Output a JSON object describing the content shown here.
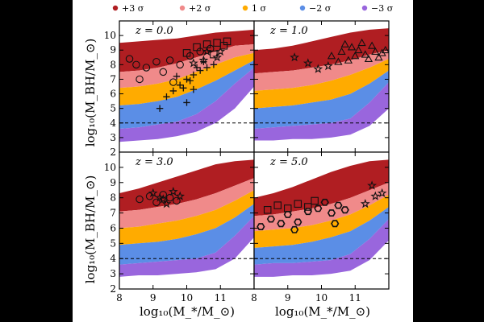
{
  "legend": [
    {
      "label": "+3 σ",
      "color": "#b01e22"
    },
    {
      "label": "+2 σ",
      "color": "#f08a8a"
    },
    {
      "label": "1 σ",
      "color": "#ffab00"
    },
    {
      "label": "−2 σ",
      "color": "#5b8ee6"
    },
    {
      "label": "−3 σ",
      "color": "#9966dd"
    }
  ],
  "axes": {
    "ylabel_top": "log₁₀(M_BH/M_⊙)",
    "ylabel_bottom": "log₁₀(M_BH/M_⊙)",
    "xlabel_left": "log₁₀(M_*/M_⊙)",
    "xlabel_right": "log₁₀(M_*/M_⊙)"
  },
  "chart_data": {
    "type": "scatter",
    "xlim": [
      8,
      12
    ],
    "ylim": [
      2,
      11
    ],
    "x_ticks": [
      8,
      9,
      10,
      11
    ],
    "y_ticks": [
      2,
      3,
      4,
      5,
      6,
      7,
      8,
      9,
      10
    ],
    "threshold_line_y": 4,
    "panels": [
      {
        "label": "z = 0.0",
        "bands": {
          "p3": {
            "lo": [
              7.5,
              7.6,
              7.8,
              8.1,
              8.5,
              8.9,
              9.3,
              9.4
            ],
            "hi": [
              9.5,
              9.6,
              9.7,
              9.8,
              10.0,
              10.2,
              10.3,
              10.4
            ]
          },
          "p2": {
            "lo": [
              6.4,
              6.5,
              6.7,
              7.0,
              7.5,
              8.0,
              8.5,
              8.8
            ],
            "hi": [
              7.5,
              7.6,
              7.8,
              8.1,
              8.5,
              8.9,
              9.3,
              9.4
            ]
          },
          "s1": {
            "lo": [
              5.2,
              5.3,
              5.5,
              5.8,
              6.3,
              6.9,
              7.6,
              8.3
            ],
            "hi": [
              6.4,
              6.5,
              6.7,
              7.0,
              7.5,
              8.0,
              8.5,
              8.8
            ]
          },
          "m2": {
            "lo": [
              3.6,
              3.7,
              3.9,
              4.1,
              4.6,
              5.5,
              6.7,
              7.8
            ],
            "hi": [
              5.2,
              5.3,
              5.5,
              5.8,
              6.3,
              6.9,
              7.6,
              8.3
            ]
          },
          "m3": {
            "lo": [
              2.7,
              2.8,
              2.9,
              3.1,
              3.4,
              4.0,
              5.0,
              6.5
            ],
            "hi": [
              3.6,
              3.7,
              3.9,
              4.1,
              4.6,
              5.5,
              6.7,
              7.8
            ]
          }
        },
        "observations": [
          {
            "marker": "circle",
            "points": [
              [
                8.3,
                8.4
              ],
              [
                8.5,
                8.0
              ],
              [
                8.8,
                7.8
              ],
              [
                9.1,
                8.2
              ],
              [
                9.3,
                7.5
              ],
              [
                9.5,
                8.3
              ],
              [
                9.8,
                8.0
              ],
              [
                10.1,
                8.6
              ],
              [
                10.4,
                8.9
              ],
              [
                10.7,
                9.1
              ],
              [
                9.6,
                6.8
              ],
              [
                8.6,
                7.0
              ]
            ]
          },
          {
            "marker": "square",
            "points": [
              [
                10.0,
                8.8
              ],
              [
                10.3,
                9.2
              ],
              [
                10.6,
                9.4
              ],
              [
                10.9,
                9.5
              ],
              [
                11.1,
                9.3
              ],
              [
                10.8,
                8.7
              ],
              [
                11.2,
                9.6
              ]
            ]
          },
          {
            "marker": "plus",
            "points": [
              [
                9.6,
                6.2
              ],
              [
                9.8,
                6.6
              ],
              [
                10.0,
                7.0
              ],
              [
                10.2,
                7.3
              ],
              [
                10.4,
                7.6
              ],
              [
                10.6,
                7.8
              ],
              [
                10.1,
                6.9
              ],
              [
                9.9,
                6.4
              ],
              [
                10.3,
                7.8
              ],
              [
                10.5,
                8.2
              ],
              [
                9.7,
                7.2
              ],
              [
                10.8,
                8.0
              ],
              [
                9.4,
                5.8
              ],
              [
                10.0,
                5.4
              ],
              [
                9.2,
                5.0
              ],
              [
                10.2,
                6.3
              ]
            ]
          },
          {
            "marker": "star",
            "points": [
              [
                10.2,
                8.1
              ],
              [
                10.5,
                8.3
              ],
              [
                10.9,
                8.5
              ],
              [
                11.0,
                8.9
              ],
              [
                10.6,
                8.9
              ]
            ]
          }
        ]
      },
      {
        "label": "z = 1.0",
        "bands": {
          "p3": {
            "lo": [
              7.4,
              7.5,
              7.6,
              7.8,
              8.0,
              8.3,
              8.7,
              9.0
            ],
            "hi": [
              9.0,
              9.1,
              9.3,
              9.6,
              9.9,
              10.2,
              10.4,
              10.5
            ]
          },
          "p2": {
            "lo": [
              6.2,
              6.3,
              6.4,
              6.6,
              6.9,
              7.3,
              7.8,
              8.4
            ],
            "hi": [
              7.4,
              7.5,
              7.6,
              7.8,
              8.0,
              8.3,
              8.7,
              9.0
            ]
          },
          "s1": {
            "lo": [
              5.0,
              5.1,
              5.2,
              5.4,
              5.6,
              6.0,
              6.7,
              7.6
            ],
            "hi": [
              6.2,
              6.3,
              6.4,
              6.6,
              6.9,
              7.3,
              7.8,
              8.4
            ]
          },
          "m2": {
            "lo": [
              3.6,
              3.7,
              3.8,
              3.9,
              4.0,
              4.3,
              5.4,
              6.8
            ],
            "hi": [
              5.0,
              5.1,
              5.2,
              5.4,
              5.6,
              6.0,
              6.7,
              7.6
            ]
          },
          "m3": {
            "lo": [
              2.8,
              2.8,
              2.9,
              2.9,
              3.0,
              3.2,
              3.8,
              5.0
            ],
            "hi": [
              3.6,
              3.7,
              3.8,
              3.9,
              4.0,
              4.3,
              5.4,
              6.8
            ]
          }
        },
        "observations": [
          {
            "marker": "triangle",
            "points": [
              [
                10.3,
                8.6
              ],
              [
                10.6,
                8.9
              ],
              [
                10.9,
                9.2
              ],
              [
                11.1,
                9.0
              ],
              [
                11.3,
                8.7
              ],
              [
                11.5,
                9.3
              ],
              [
                10.8,
                8.3
              ],
              [
                11.6,
                8.9
              ],
              [
                11.7,
                8.5
              ],
              [
                10.5,
                8.2
              ],
              [
                11.4,
                8.4
              ],
              [
                11.8,
                8.8
              ],
              [
                11.2,
                9.5
              ],
              [
                10.7,
                9.4
              ],
              [
                11.9,
                9.0
              ],
              [
                11.0,
                8.6
              ]
            ]
          },
          {
            "marker": "star",
            "points": [
              [
                9.2,
                8.5
              ],
              [
                9.6,
                8.1
              ],
              [
                9.9,
                7.7
              ],
              [
                10.2,
                7.9
              ]
            ]
          }
        ]
      },
      {
        "label": "z = 3.0",
        "bands": {
          "p3": {
            "lo": [
              7.1,
              7.2,
              7.4,
              7.6,
              7.9,
              8.3,
              8.8,
              9.3
            ],
            "hi": [
              8.3,
              8.6,
              9.0,
              9.4,
              9.8,
              10.2,
              10.4,
              10.5
            ]
          },
          "p2": {
            "lo": [
              6.0,
              6.1,
              6.3,
              6.5,
              6.8,
              7.2,
              7.8,
              8.5
            ],
            "hi": [
              7.1,
              7.2,
              7.4,
              7.6,
              7.9,
              8.3,
              8.8,
              9.3
            ]
          },
          "s1": {
            "lo": [
              4.9,
              5.0,
              5.1,
              5.3,
              5.6,
              6.0,
              6.7,
              7.6
            ],
            "hi": [
              6.0,
              6.1,
              6.3,
              6.5,
              6.8,
              7.2,
              7.8,
              8.5
            ]
          },
          "m2": {
            "lo": [
              3.6,
              3.7,
              3.8,
              3.9,
              4.0,
              4.4,
              5.5,
              6.8
            ],
            "hi": [
              4.9,
              5.0,
              5.1,
              5.3,
              5.6,
              6.0,
              6.7,
              7.6
            ]
          },
          "m3": {
            "lo": [
              2.8,
              2.9,
              2.9,
              3.0,
              3.1,
              3.3,
              4.0,
              5.4
            ],
            "hi": [
              3.6,
              3.7,
              3.8,
              3.9,
              4.0,
              4.4,
              5.5,
              6.8
            ]
          }
        },
        "observations": [
          {
            "marker": "circle",
            "points": [
              [
                8.6,
                7.9
              ],
              [
                8.9,
                8.1
              ],
              [
                9.1,
                7.7
              ],
              [
                9.3,
                8.2
              ],
              [
                9.5,
                8.0
              ],
              [
                9.7,
                7.8
              ]
            ]
          },
          {
            "marker": "star",
            "points": [
              [
                9.0,
                8.3
              ],
              [
                9.2,
                8.0
              ],
              [
                9.4,
                7.6
              ],
              [
                9.6,
                8.4
              ],
              [
                9.8,
                8.1
              ],
              [
                9.3,
                7.9
              ]
            ]
          }
        ]
      },
      {
        "label": "z = 5.0",
        "bands": {
          "p3": {
            "lo": [
              6.8,
              6.9,
              7.1,
              7.3,
              7.6,
              8.0,
              8.5,
              9.0
            ],
            "hi": [
              8.0,
              8.3,
              8.7,
              9.2,
              9.7,
              10.1,
              10.4,
              10.5
            ]
          },
          "p2": {
            "lo": [
              5.8,
              5.9,
              6.0,
              6.2,
              6.5,
              6.9,
              7.5,
              8.2
            ],
            "hi": [
              6.8,
              6.9,
              7.1,
              7.3,
              7.6,
              8.0,
              8.5,
              9.0
            ]
          },
          "s1": {
            "lo": [
              4.7,
              4.8,
              4.9,
              5.1,
              5.4,
              5.8,
              6.5,
              7.4
            ],
            "hi": [
              5.8,
              5.9,
              6.0,
              6.2,
              6.5,
              6.9,
              7.5,
              8.2
            ]
          },
          "m2": {
            "lo": [
              3.6,
              3.7,
              3.7,
              3.8,
              3.9,
              4.3,
              5.3,
              6.6
            ],
            "hi": [
              4.7,
              4.8,
              4.9,
              5.1,
              5.4,
              5.8,
              6.5,
              7.4
            ]
          },
          "m3": {
            "lo": [
              2.8,
              2.8,
              2.9,
              2.9,
              3.0,
              3.2,
              3.9,
              5.2
            ],
            "hi": [
              3.6,
              3.7,
              3.7,
              3.8,
              3.9,
              4.3,
              5.3,
              6.6
            ]
          }
        },
        "observations": [
          {
            "marker": "hexagon",
            "points": [
              [
                8.2,
                6.1
              ],
              [
                8.5,
                6.6
              ],
              [
                8.8,
                6.3
              ],
              [
                9.0,
                6.9
              ],
              [
                9.3,
                6.4
              ],
              [
                9.6,
                7.1
              ],
              [
                9.9,
                7.3
              ],
              [
                10.1,
                7.7
              ],
              [
                10.3,
                7.0
              ],
              [
                10.5,
                7.5
              ],
              [
                10.7,
                7.2
              ],
              [
                10.4,
                6.3
              ],
              [
                9.2,
                5.9
              ]
            ]
          },
          {
            "marker": "square",
            "points": [
              [
                8.4,
                7.2
              ],
              [
                8.7,
                7.5
              ],
              [
                9.0,
                7.3
              ],
              [
                9.3,
                7.6
              ],
              [
                9.6,
                7.4
              ],
              [
                9.8,
                7.8
              ]
            ]
          },
          {
            "marker": "star",
            "points": [
              [
                11.3,
                7.6
              ],
              [
                11.6,
                8.1
              ],
              [
                11.8,
                8.3
              ],
              [
                11.5,
                8.8
              ]
            ]
          }
        ]
      }
    ]
  }
}
